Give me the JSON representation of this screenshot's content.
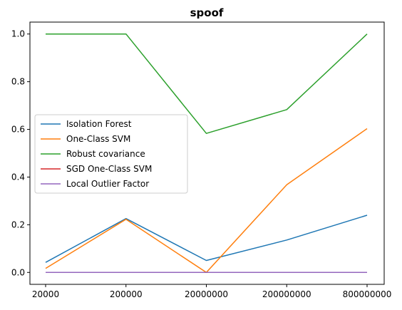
{
  "chart_data": {
    "type": "line",
    "title": "spoof",
    "xlabel": "",
    "ylabel": "",
    "categories": [
      "20000",
      "200000",
      "20000000",
      "200000000",
      "800000000"
    ],
    "ylim": [
      -0.05,
      1.05
    ],
    "yticks": [
      "0.0",
      "0.2",
      "0.4",
      "0.6",
      "0.8",
      "1.0"
    ],
    "legend_position": "center-left",
    "grid": false,
    "series": [
      {
        "name": "Isolation Forest",
        "color": "#1f77b4",
        "values": [
          0.042,
          0.226,
          0.05,
          0.136,
          0.24
        ]
      },
      {
        "name": "One-Class SVM",
        "color": "#ff7f0e",
        "values": [
          0.017,
          0.223,
          0.0,
          0.368,
          0.603
        ]
      },
      {
        "name": "Robust covariance",
        "color": "#2ca02c",
        "values": [
          1.0,
          1.0,
          0.583,
          0.683,
          1.0
        ]
      },
      {
        "name": "SGD One-Class SVM",
        "color": "#d62728",
        "values": [
          0.0,
          0.0,
          0.0,
          0.0,
          0.0
        ]
      },
      {
        "name": "Local Outlier Factor",
        "color": "#9467bd",
        "values": [
          0.0,
          0.0,
          0.0,
          0.0,
          0.0
        ]
      }
    ]
  }
}
